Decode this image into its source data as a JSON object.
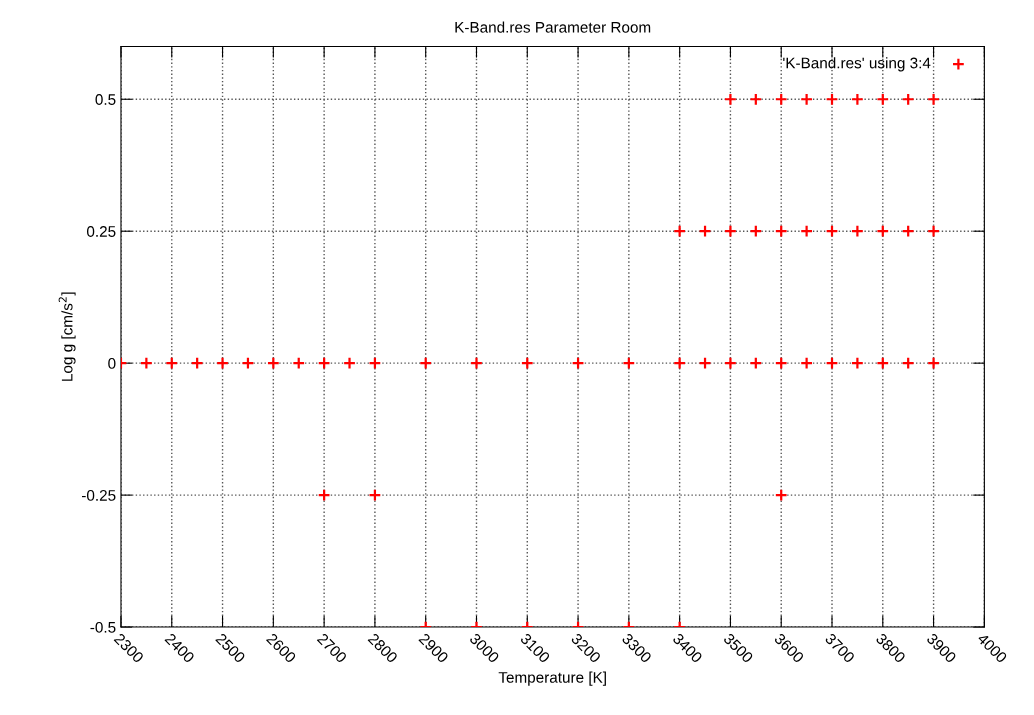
{
  "chart_data": {
    "type": "scatter",
    "title": "K-Band.res Parameter Room",
    "xlabel": "Temperature [K]",
    "ylabel": "Log g [cm/s$^{2}$]",
    "series": [
      {
        "name": "'K-Band.res' using 3:4",
        "color": "#ff0000",
        "x": [
          2300,
          2350,
          2400,
          2450,
          2500,
          2550,
          2600,
          2650,
          2700,
          2750,
          2800,
          2900,
          3000,
          3100,
          3200,
          3300,
          3400,
          3450,
          3500,
          3550,
          3600,
          3650,
          3700,
          3750,
          3800,
          3850,
          3900,
          2700,
          2800,
          3600,
          2900,
          3000,
          3100,
          3200,
          3300,
          3400,
          3400,
          3450,
          3500,
          3550,
          3600,
          3650,
          3700,
          3750,
          3800,
          3850,
          3900,
          3500,
          3550,
          3600,
          3650,
          3700,
          3750,
          3800,
          3850,
          3900
        ],
        "values": [
          0,
          0,
          0,
          0,
          0,
          0,
          0,
          0,
          0,
          0,
          0,
          0,
          0,
          0,
          0,
          0,
          0,
          0,
          0,
          0,
          0,
          0,
          0,
          0,
          0,
          0,
          0,
          -0.25,
          -0.25,
          -0.25,
          -0.5,
          -0.5,
          -0.5,
          -0.5,
          -0.5,
          -0.5,
          0.25,
          0.25,
          0.25,
          0.25,
          0.25,
          0.25,
          0.25,
          0.25,
          0.25,
          0.25,
          0.25,
          0.5,
          0.5,
          0.5,
          0.5,
          0.5,
          0.5,
          0.5,
          0.5,
          0.5
        ]
      }
    ],
    "xlim": [
      2300,
      4000
    ],
    "xticks": [
      2300,
      2400,
      2500,
      2600,
      2700,
      2800,
      2900,
      3000,
      3100,
      3200,
      3300,
      3400,
      3500,
      3600,
      3700,
      3800,
      3900,
      4000
    ],
    "ylim": [
      -0.5,
      0.6
    ],
    "yticks": [
      -0.5,
      -0.25,
      0,
      0.25,
      0.5
    ],
    "grid": true,
    "legend": "top right",
    "marker": "cross"
  }
}
